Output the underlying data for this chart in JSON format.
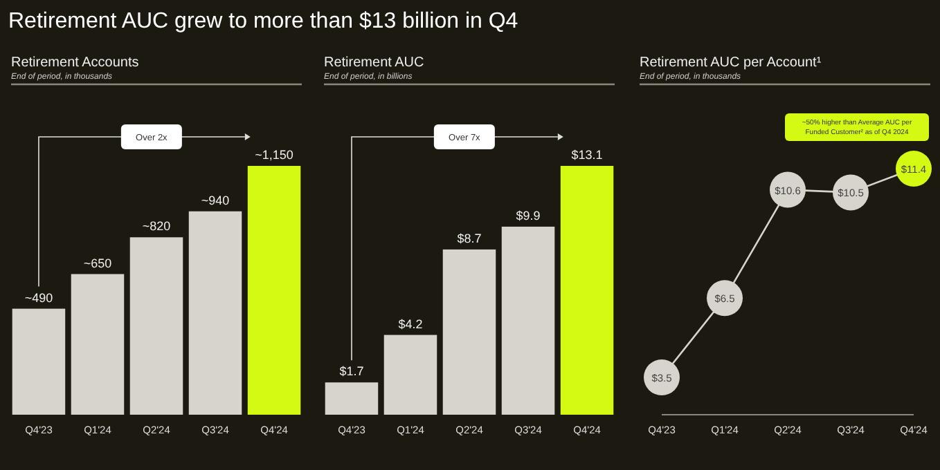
{
  "chart_data": [
    {
      "type": "bar",
      "title": "Retirement Accounts",
      "subtitle": "End of period, in thousands",
      "annotations": [
        "Retirement AUC grew to more than $13 billion in  Q4",
        "Over 2x"
      ],
      "categories": [
        "Q4'23",
        "Q1'24",
        "Q2'24",
        "Q3'24",
        "Q4'24"
      ],
      "values": [
        490,
        650,
        820,
        940,
        1150
      ],
      "value_labels": [
        "~490",
        "~650",
        "~820",
        "~940",
        "~1,150"
      ],
      "colors": [
        "#d7d4cd",
        "#d7d4cd",
        "#d7d4cd",
        "#d7d4cd",
        "#d4fa14"
      ]
    },
    {
      "type": "bar",
      "title": "Retirement AUC",
      "subtitle": "End of period, in billions",
      "annotations": [
        "Over 7x"
      ],
      "categories": [
        "Q4'23",
        "Q1'24",
        "Q2'24",
        "Q3'24",
        "Q4'24"
      ],
      "values": [
        1.7,
        4.2,
        8.7,
        9.9,
        13.1
      ],
      "value_labels": [
        "$1.7",
        "$4.2",
        "$8.7",
        "$9.9",
        "$13.1"
      ],
      "colors": [
        "#d7d4cd",
        "#d7d4cd",
        "#d7d4cd",
        "#d7d4cd",
        "#d4fa14"
      ]
    },
    {
      "type": "line",
      "title": "Retirement AUC per Account¹",
      "subtitle": "End of period, in thousands",
      "annotations": [
        "~50% higher than Average AUC per Funded Customer² as of Q4 2024"
      ],
      "categories": [
        "Q4'23",
        "Q1'24",
        "Q2'24",
        "Q3'24",
        "Q4'24"
      ],
      "values": [
        3.5,
        6.5,
        10.6,
        10.5,
        11.4
      ],
      "value_labels": [
        "$3.5",
        "$6.5",
        "$10.6",
        "$10.5",
        "$11.4"
      ],
      "color": "#d7d4cd",
      "colors": [
        "#d7d4cd",
        "#d7d4cd",
        "#d7d4cd",
        "#d7d4cd",
        "#d4fa14"
      ],
      "marker": "circle"
    }
  ]
}
